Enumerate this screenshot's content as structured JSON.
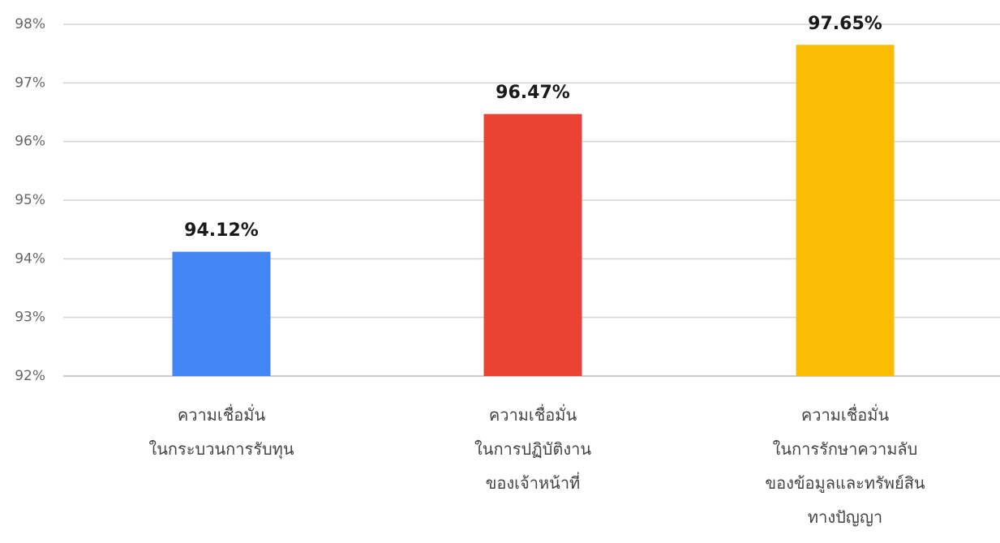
{
  "chart_data": {
    "type": "bar",
    "title": "",
    "xlabel": "",
    "ylabel": "",
    "ylim": [
      92,
      98
    ],
    "y_ticks": [
      92,
      93,
      94,
      95,
      96,
      97,
      98
    ],
    "y_tick_suffix": "%",
    "grid": true,
    "legend": "none",
    "categories": [
      [
        "ความเชื่อมั่น",
        "ในกระบวนการรับทุน"
      ],
      [
        "ความเชื่อมั่น",
        "ในการปฏิบัติงาน",
        "ของเจ้าหน้าที่"
      ],
      [
        "ความเชื่อมั่น",
        "ในการรักษาความลับ",
        "ของข้อมูลและทรัพย์สิน",
        "ทางปัญญา"
      ]
    ],
    "values": [
      94.12,
      96.47,
      97.65
    ],
    "data_labels": [
      "94.12%",
      "96.47%",
      "97.65%"
    ],
    "colors": [
      "#4285f4",
      "#ea4335",
      "#fbbc04"
    ]
  }
}
